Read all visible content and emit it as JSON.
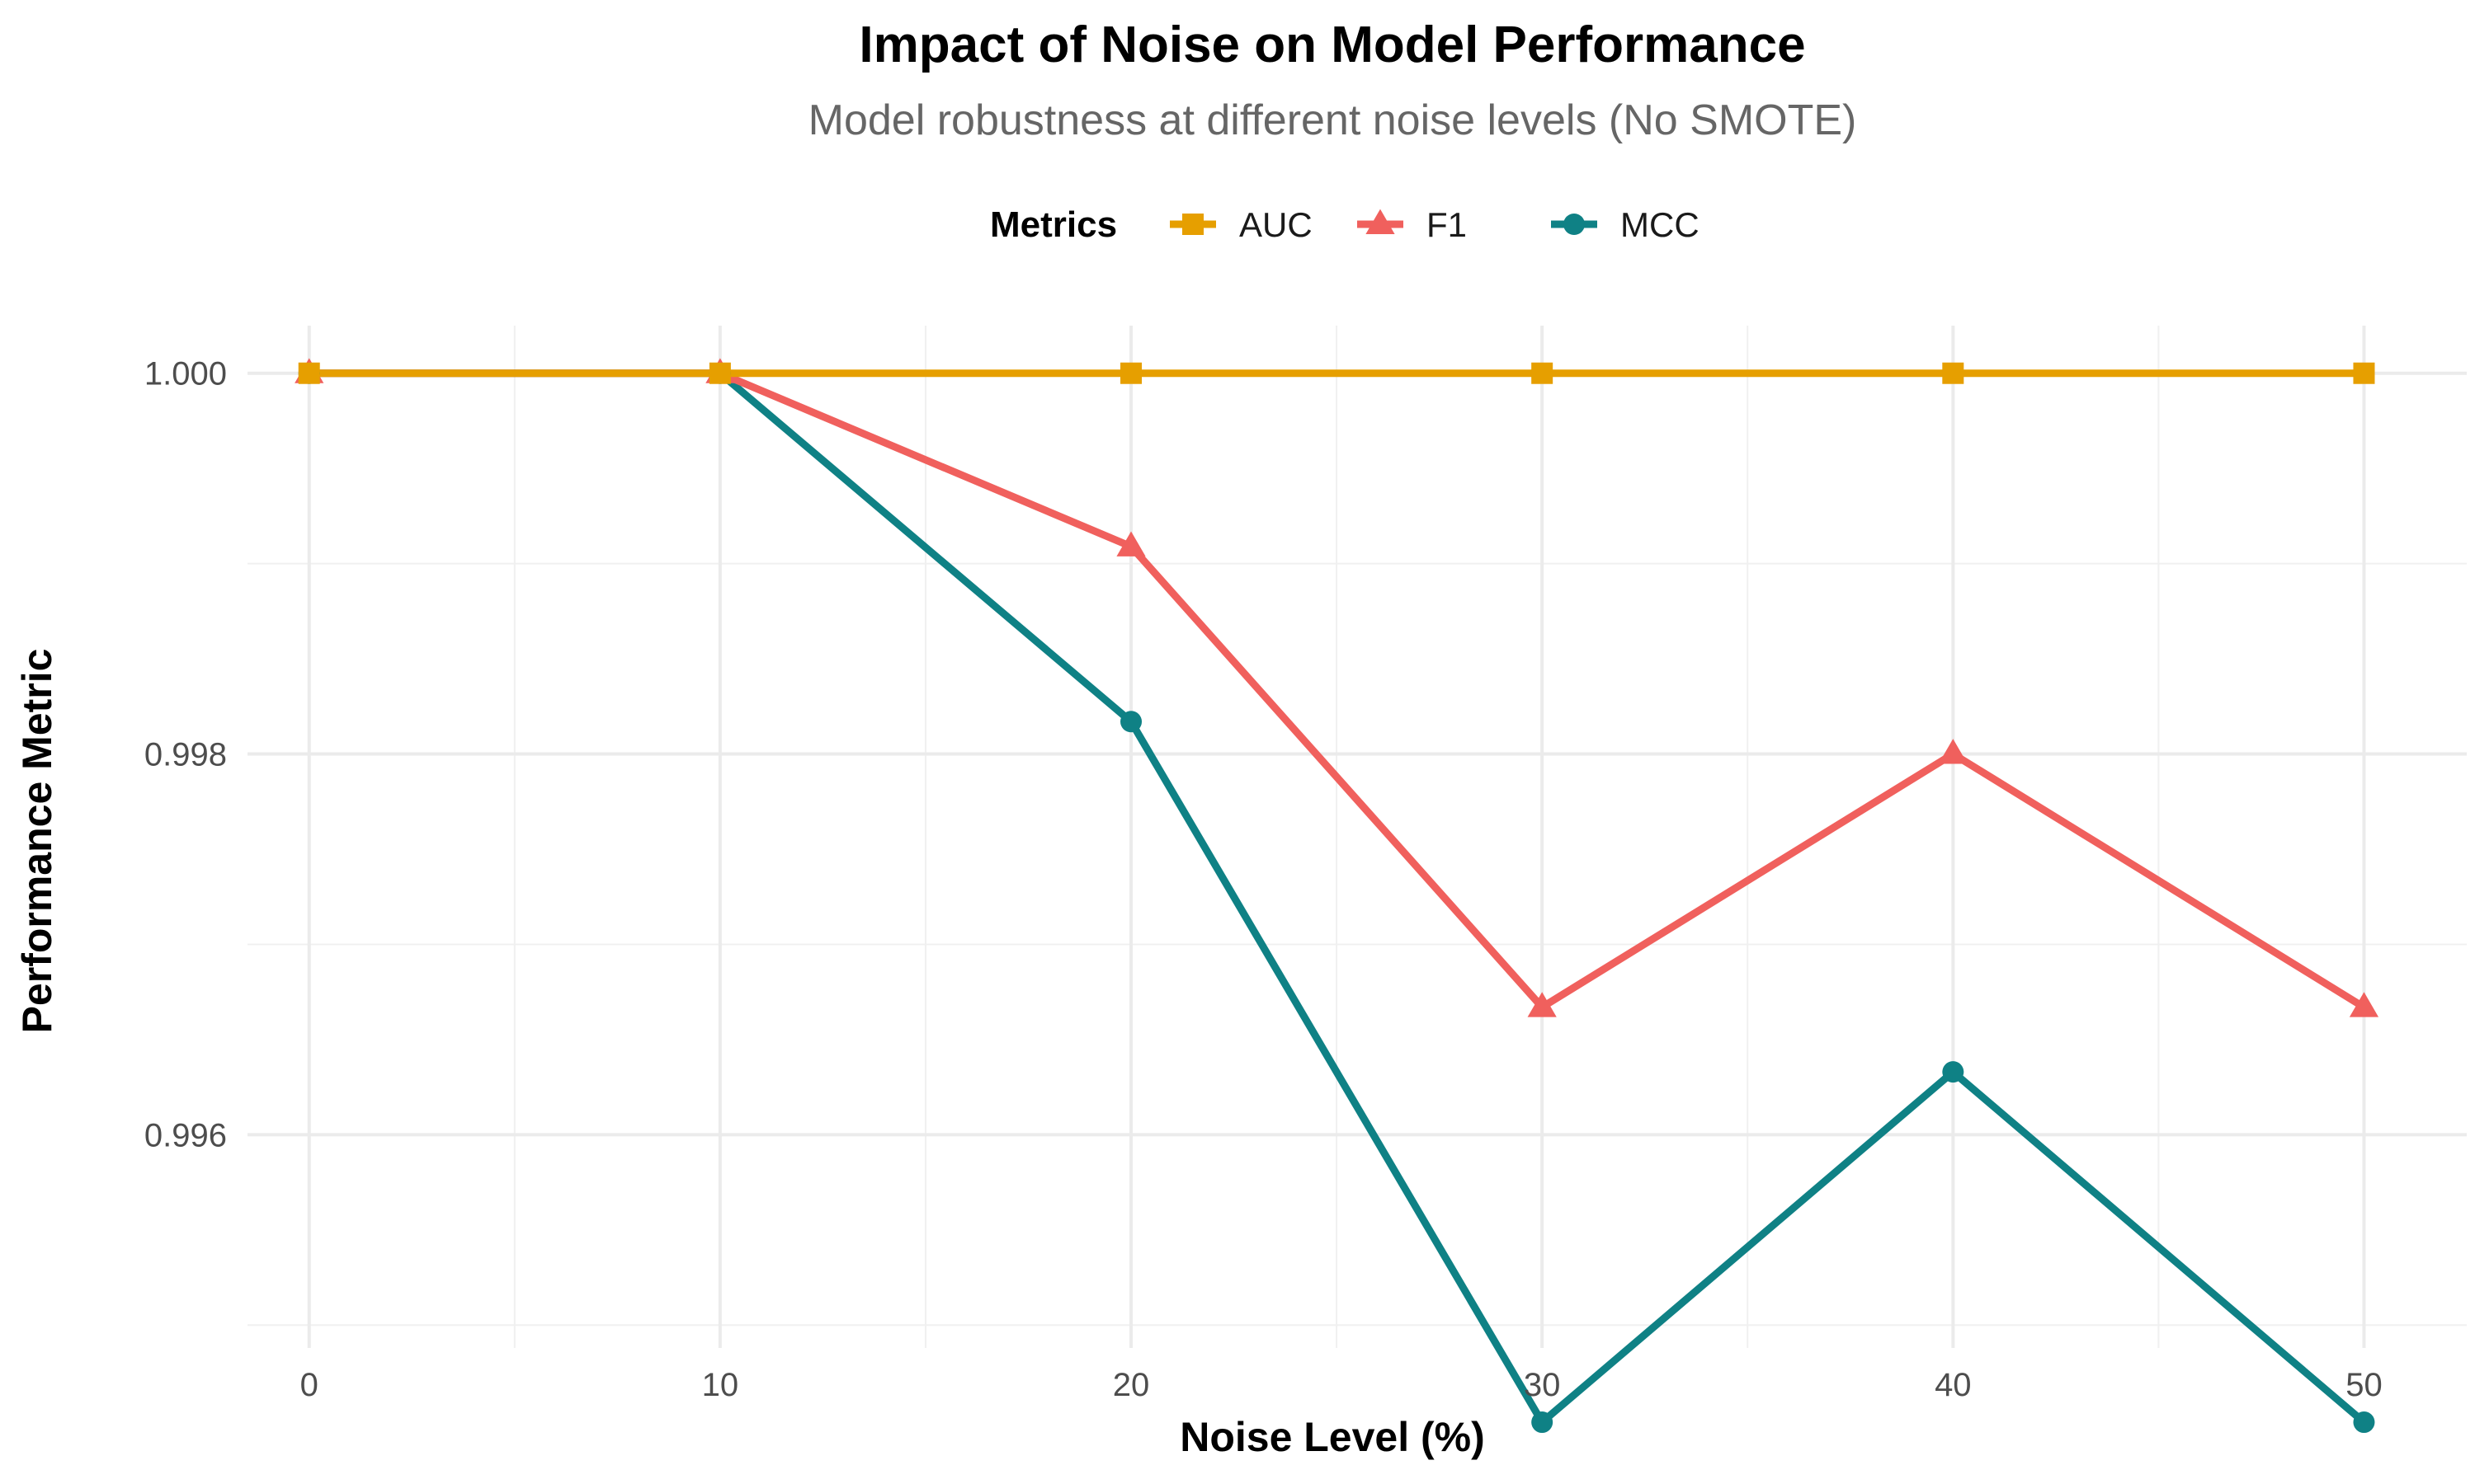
{
  "chart_data": {
    "type": "line",
    "title": "Impact of Noise on Model Performance",
    "subtitle": "Model robustness at different noise levels (No SMOTE)",
    "xlabel": "Noise Level (%)",
    "ylabel": "Performance Metric",
    "x": [
      0,
      10,
      20,
      30,
      40,
      50
    ],
    "xticks": [
      0,
      10,
      20,
      30,
      40,
      50
    ],
    "yticks": [
      0.996,
      0.998,
      1.0
    ],
    "ytick_labels": [
      "0.996",
      "0.998",
      "1.000"
    ],
    "xlim": [
      -1.5,
      52.5
    ],
    "ylim": [
      0.99488,
      1.00025
    ],
    "grid": true,
    "legend": {
      "title": "Metrics",
      "position": "top"
    },
    "series": [
      {
        "name": "AUC",
        "color": "#E69F00",
        "marker": "square",
        "values": [
          1.0,
          1.0,
          1.0,
          1.0,
          1.0,
          1.0
        ]
      },
      {
        "name": "F1",
        "color": "#F0605D",
        "marker": "triangle",
        "values": [
          1.0,
          1.0,
          0.99909,
          0.99667,
          0.998,
          0.99667
        ]
      },
      {
        "name": "MCC",
        "color": "#0F8185",
        "marker": "circle",
        "values": [
          1.0,
          1.0,
          0.99817,
          0.99449,
          0.99633,
          0.99449
        ]
      }
    ]
  }
}
